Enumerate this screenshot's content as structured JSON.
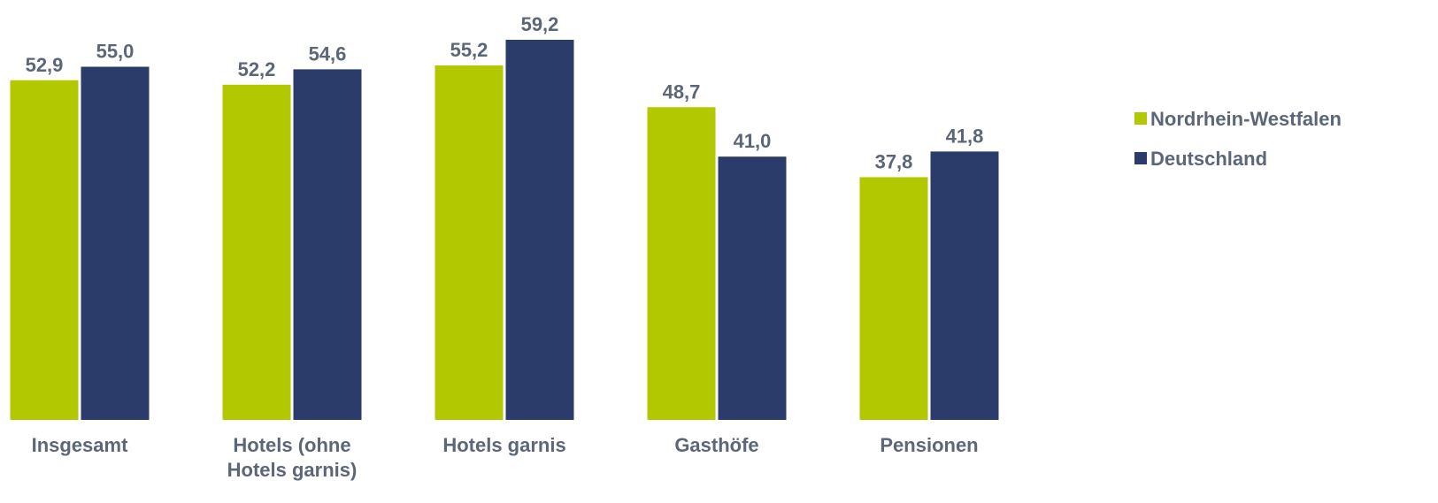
{
  "chart_data": {
    "type": "bar",
    "categories": [
      "Insgesamt",
      "Hotels (ohne Hotels garnis)",
      "Hotels garnis",
      "Gasthöfe",
      "Pensionen"
    ],
    "series": [
      {
        "name": "Nordrhein-Westfalen",
        "color": "#b2c800",
        "values": [
          52.9,
          52.2,
          55.2,
          48.7,
          37.8
        ],
        "value_labels": [
          "52,9",
          "52,2",
          "55,2",
          "48,7",
          "37,8"
        ]
      },
      {
        "name": "Deutschland",
        "color": "#2b3b6a",
        "values": [
          55.0,
          54.6,
          59.2,
          41.0,
          41.8
        ],
        "value_labels": [
          "55,0",
          "54,6",
          "59,2",
          "41,0",
          "41,8"
        ]
      }
    ],
    "legend": "right"
  }
}
